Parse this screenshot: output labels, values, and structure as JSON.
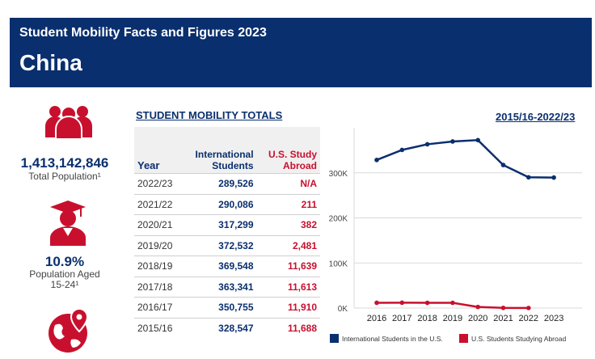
{
  "header": {
    "subtitle": "Student Mobility Facts and Figures 2023",
    "country": "China"
  },
  "sidebar": {
    "population": {
      "value": "1,413,142,846",
      "label": "Total Population¹"
    },
    "aged": {
      "value": "10.9%",
      "label_line1": "Population Aged",
      "label_line2": "15-24¹"
    }
  },
  "table": {
    "title": "STUDENT MOBILITY TOTALS",
    "headers": {
      "year": "Year",
      "intl_1": "International",
      "intl_2": "Students",
      "abroad_1": "U.S. Study",
      "abroad_2": "Abroad"
    },
    "rows": [
      {
        "year": "2022/23",
        "intl": "289,526",
        "abroad": "N/A"
      },
      {
        "year": "2021/22",
        "intl": "290,086",
        "abroad": "211"
      },
      {
        "year": "2020/21",
        "intl": "317,299",
        "abroad": "382"
      },
      {
        "year": "2019/20",
        "intl": "372,532",
        "abroad": "2,481"
      },
      {
        "year": "2018/19",
        "intl": "369,548",
        "abroad": "11,639"
      },
      {
        "year": "2017/18",
        "intl": "363,341",
        "abroad": "11,613"
      },
      {
        "year": "2016/17",
        "intl": "350,755",
        "abroad": "11,910"
      },
      {
        "year": "2015/16",
        "intl": "328,547",
        "abroad": "11,688"
      }
    ]
  },
  "chart_title": "2015/16-2022/23",
  "colors": {
    "navy": "#0a2f6e",
    "red": "#c8102e"
  },
  "icons": [
    "people-icon",
    "graduate-icon",
    "globe-pin-icon"
  ],
  "chart_data": {
    "type": "line",
    "x": [
      2016,
      2017,
      2018,
      2019,
      2020,
      2021,
      2022,
      2023
    ],
    "xticks": [
      "2016",
      "2017",
      "2018",
      "2019",
      "2020",
      "2021",
      "2022",
      "2023"
    ],
    "yticks": [
      "0K",
      "100K",
      "200K",
      "300K"
    ],
    "ylim": [
      0,
      400000
    ],
    "grid": true,
    "legend_position": "bottom",
    "series": [
      {
        "name": "International Students in the U.S.",
        "color": "#0a2f6e",
        "values": [
          328547,
          350755,
          363341,
          369548,
          372532,
          317299,
          290086,
          289526
        ]
      },
      {
        "name": "U.S. Students Studying Abroad",
        "color": "#c8102e",
        "values": [
          11688,
          11910,
          11613,
          11639,
          2481,
          382,
          211,
          null
        ]
      }
    ]
  }
}
